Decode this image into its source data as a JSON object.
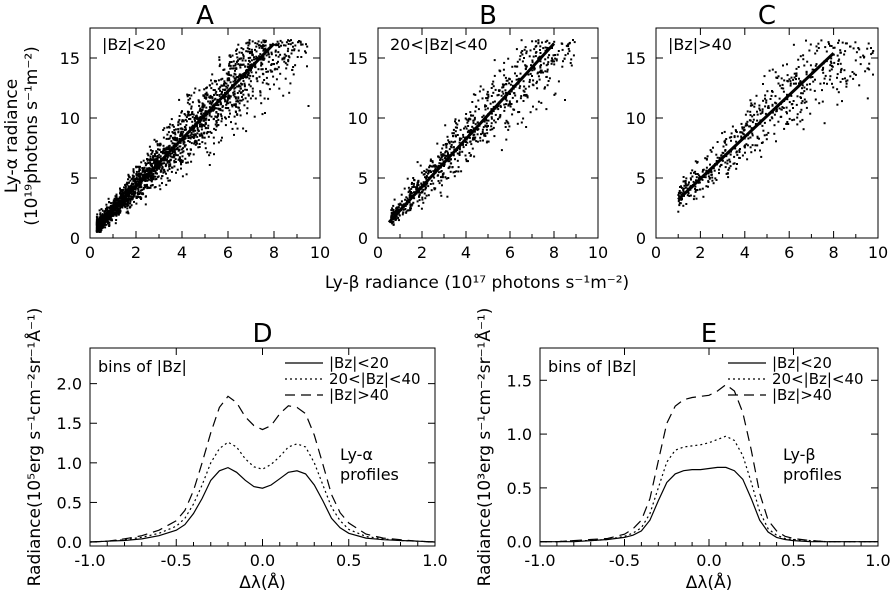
{
  "chart_data": [
    {
      "type": "scatter",
      "title": "A",
      "annotation": "|Bz|<20",
      "xlim": [
        0,
        10
      ],
      "ylim": [
        0,
        17.5
      ],
      "xticks": [
        "0",
        "2",
        "4",
        "6",
        "8",
        "10"
      ],
      "yticks": [
        "0",
        "5",
        "10",
        "15"
      ],
      "fit": {
        "x": [
          0.4,
          8.0
        ],
        "y": [
          1.1,
          16.2
        ]
      },
      "cloud": {
        "n": 2600,
        "x_range": [
          0.3,
          9.5
        ],
        "trend": {
          "slope": 2.0,
          "intercept": 0.3
        }
      },
      "sample_points": [
        [
          0.5,
          1.2
        ],
        [
          1.0,
          2.0
        ],
        [
          1.5,
          3.0
        ],
        [
          2.0,
          4.2
        ],
        [
          2.5,
          5.0
        ],
        [
          3.0,
          6.1
        ],
        [
          3.5,
          7.0
        ],
        [
          4.0,
          8.2
        ],
        [
          4.5,
          9.0
        ],
        [
          5.0,
          10.2
        ],
        [
          6.0,
          12.3
        ],
        [
          7.0,
          14.0
        ],
        [
          8.0,
          14.5
        ],
        [
          9.5,
          11.0
        ]
      ]
    },
    {
      "type": "scatter",
      "title": "B",
      "annotation": "20<|Bz|<40",
      "xlim": [
        0,
        10
      ],
      "ylim": [
        0,
        17.5
      ],
      "xticks": [
        "0",
        "2",
        "4",
        "6",
        "8",
        "10"
      ],
      "yticks": [
        "0",
        "5",
        "10",
        "15"
      ],
      "fit": {
        "x": [
          0.5,
          8.0
        ],
        "y": [
          1.3,
          16.2
        ]
      },
      "cloud": {
        "n": 900,
        "x_range": [
          0.6,
          9.0
        ],
        "trend": {
          "slope": 1.95,
          "intercept": 0.5
        }
      },
      "sample_points": [
        [
          0.8,
          1.5
        ],
        [
          1.5,
          2.8
        ],
        [
          2.0,
          3.8
        ],
        [
          3.0,
          6.0
        ],
        [
          4.0,
          8.0
        ],
        [
          5.0,
          10.3
        ],
        [
          6.0,
          12.0
        ],
        [
          7.0,
          13.5
        ],
        [
          8.5,
          11.5
        ]
      ]
    },
    {
      "type": "scatter",
      "title": "C",
      "annotation": "|Bz|>40",
      "xlim": [
        0,
        10
      ],
      "ylim": [
        0,
        17.5
      ],
      "xticks": [
        "0",
        "2",
        "4",
        "6",
        "8",
        "10"
      ],
      "yticks": [
        "0",
        "5",
        "10",
        "15"
      ],
      "fit": {
        "x": [
          1.0,
          8.0
        ],
        "y": [
          3.2,
          15.4
        ]
      },
      "cloud": {
        "n": 650,
        "x_range": [
          1.0,
          9.8
        ],
        "trend": {
          "slope": 1.75,
          "intercept": 1.5
        }
      },
      "sample_points": [
        [
          1.5,
          3.5
        ],
        [
          2.5,
          5.5
        ],
        [
          3.5,
          7.5
        ],
        [
          4.5,
          9.5
        ],
        [
          5.5,
          11.0
        ],
        [
          6.5,
          13.0
        ],
        [
          7.5,
          14.0
        ],
        [
          9.0,
          14.8
        ]
      ]
    },
    {
      "type": "line",
      "title": "D",
      "ylabel": "Radiance(10⁵erg s⁻¹cm⁻²sr⁻¹Å⁻¹)",
      "xlabel": "Δλ(Å)",
      "xlim": [
        -1.0,
        1.0
      ],
      "ylim": [
        -0.05,
        2.45
      ],
      "xticks": [
        "-1.0",
        "-0.5",
        "0.0",
        "0.5",
        "1.0"
      ],
      "yticks": [
        "0.0",
        "0.5",
        "1.0",
        "1.5",
        "2.0"
      ],
      "annotation_left": "bins of |Bz|",
      "annotation_right": [
        "Ly-α",
        "profiles"
      ],
      "x": [
        -1.0,
        -0.9,
        -0.8,
        -0.7,
        -0.6,
        -0.5,
        -0.45,
        -0.4,
        -0.35,
        -0.3,
        -0.25,
        -0.2,
        -0.15,
        -0.1,
        -0.05,
        0.0,
        0.05,
        0.1,
        0.15,
        0.2,
        0.25,
        0.3,
        0.35,
        0.4,
        0.45,
        0.5,
        0.6,
        0.7,
        0.8,
        0.9,
        1.0
      ],
      "series": [
        {
          "name": "|Bz|<20",
          "dash": "solid",
          "values": [
            0.0,
            0.01,
            0.02,
            0.04,
            0.08,
            0.15,
            0.22,
            0.36,
            0.55,
            0.78,
            0.9,
            0.94,
            0.88,
            0.78,
            0.7,
            0.68,
            0.72,
            0.8,
            0.88,
            0.9,
            0.86,
            0.72,
            0.52,
            0.3,
            0.18,
            0.11,
            0.05,
            0.03,
            0.02,
            0.01,
            0.0
          ]
        },
        {
          "name": "20<|Bz|<40",
          "dash": "dotted",
          "values": [
            0.0,
            0.01,
            0.03,
            0.06,
            0.11,
            0.2,
            0.3,
            0.48,
            0.72,
            1.0,
            1.18,
            1.26,
            1.2,
            1.05,
            0.95,
            0.92,
            0.98,
            1.08,
            1.2,
            1.24,
            1.2,
            1.0,
            0.72,
            0.44,
            0.27,
            0.16,
            0.07,
            0.04,
            0.02,
            0.01,
            0.0
          ]
        },
        {
          "name": "|Bz|>40",
          "dash": "dashed",
          "values": [
            0.0,
            0.01,
            0.04,
            0.08,
            0.15,
            0.27,
            0.4,
            0.65,
            1.0,
            1.38,
            1.7,
            1.84,
            1.76,
            1.58,
            1.47,
            1.42,
            1.47,
            1.62,
            1.72,
            1.7,
            1.62,
            1.35,
            0.98,
            0.6,
            0.37,
            0.24,
            0.1,
            0.05,
            0.03,
            0.01,
            0.0
          ]
        }
      ]
    },
    {
      "type": "line",
      "title": "E",
      "ylabel": "Radiance(10³erg s⁻¹cm⁻²sr⁻¹Å⁻¹)",
      "xlabel": "Δλ(Å)",
      "xlim": [
        -1.0,
        1.0
      ],
      "ylim": [
        -0.04,
        1.8
      ],
      "xticks": [
        "-1.0",
        "-0.5",
        "0.0",
        "0.5",
        "1.0"
      ],
      "yticks": [
        "0.0",
        "0.5",
        "1.0",
        "1.5"
      ],
      "annotation_left": "bins of |Bz|",
      "annotation_right": [
        "Ly-β",
        "profiles"
      ],
      "x": [
        -1.0,
        -0.9,
        -0.8,
        -0.7,
        -0.6,
        -0.5,
        -0.45,
        -0.4,
        -0.35,
        -0.3,
        -0.25,
        -0.2,
        -0.15,
        -0.1,
        -0.05,
        0.0,
        0.05,
        0.1,
        0.15,
        0.2,
        0.25,
        0.3,
        0.35,
        0.4,
        0.45,
        0.5,
        0.6,
        0.7,
        0.8,
        0.9,
        1.0
      ],
      "series": [
        {
          "name": "|Bz|<20",
          "dash": "solid",
          "values": [
            0.0,
            0.0,
            0.0,
            0.01,
            0.02,
            0.04,
            0.06,
            0.1,
            0.2,
            0.38,
            0.55,
            0.63,
            0.66,
            0.67,
            0.67,
            0.68,
            0.69,
            0.69,
            0.66,
            0.58,
            0.4,
            0.2,
            0.09,
            0.04,
            0.02,
            0.01,
            0.0,
            0.0,
            0.0,
            0.0,
            0.0
          ]
        },
        {
          "name": "20<|Bz|<40",
          "dash": "dotted",
          "values": [
            0.0,
            0.0,
            0.01,
            0.01,
            0.02,
            0.05,
            0.08,
            0.13,
            0.26,
            0.5,
            0.74,
            0.85,
            0.88,
            0.89,
            0.9,
            0.92,
            0.95,
            0.98,
            0.94,
            0.8,
            0.55,
            0.28,
            0.12,
            0.06,
            0.03,
            0.02,
            0.01,
            0.0,
            0.0,
            0.0,
            0.0
          ]
        },
        {
          "name": "|Bz|>40",
          "dash": "dashed",
          "values": [
            0.0,
            0.0,
            0.01,
            0.02,
            0.03,
            0.07,
            0.12,
            0.2,
            0.4,
            0.75,
            1.1,
            1.26,
            1.32,
            1.34,
            1.35,
            1.36,
            1.4,
            1.46,
            1.4,
            1.2,
            0.85,
            0.45,
            0.2,
            0.1,
            0.05,
            0.03,
            0.01,
            0.0,
            0.0,
            0.0,
            0.0
          ]
        }
      ]
    }
  ],
  "shared": {
    "scatter_ylabel": [
      "Ly-α radiance",
      "(10¹⁹photons s⁻¹m⁻²)"
    ],
    "scatter_xlabel": "Ly-β radiance (10¹⁷ photons s⁻¹m⁻²)"
  }
}
